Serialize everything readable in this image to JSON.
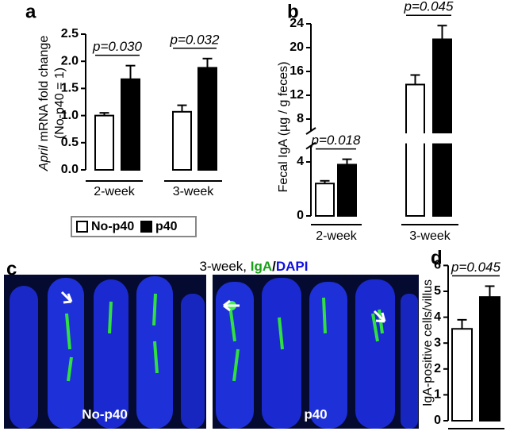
{
  "chart_data": [
    {
      "type": "bar",
      "panel": "a",
      "ylabel": [
        "April",
        "mRNA fold change",
        "(No-p40 = 1)"
      ],
      "categories": [
        "2-week",
        "3-week"
      ],
      "series": [
        {
          "name": "No-p40",
          "color": "#ffffff",
          "values": [
            1.0,
            1.07
          ],
          "errors": [
            0.05,
            0.12
          ]
        },
        {
          "name": "p40",
          "color": "#000000",
          "values": [
            1.67,
            1.88
          ],
          "errors": [
            0.25,
            0.17
          ]
        }
      ],
      "annotations": [
        "p=0.030",
        "p=0.032"
      ],
      "ylim": [
        0,
        2.5
      ],
      "yticks": [
        {
          "value": 0,
          "label": "0.0"
        },
        0.5,
        {
          "value": 1,
          "label": "1.0"
        },
        1.5,
        {
          "value": 2,
          "label": "2.0"
        },
        2.5
      ]
    },
    {
      "type": "bar",
      "panel": "b",
      "ylabel": "Fecal IgA (µg / g feces)",
      "categories": [
        "2-week",
        "3-week"
      ],
      "series": [
        {
          "name": "No-p40",
          "color": "#ffffff",
          "values": [
            2.4,
            13.8
          ],
          "errors": [
            0.2,
            1.6
          ]
        },
        {
          "name": "p40",
          "color": "#000000",
          "values": [
            3.8,
            21.4
          ],
          "errors": [
            0.4,
            2.3
          ]
        }
      ],
      "annotations": [
        "p=0.018",
        "p=0.045"
      ],
      "ylim_segments": [
        [
          0,
          5.2
        ],
        [
          6,
          24
        ]
      ],
      "yticks": [
        0,
        4,
        8,
        12,
        16,
        20,
        24
      ]
    },
    {
      "type": "image",
      "panel": "c",
      "title_parts": [
        {
          "text": "3-week, ",
          "color": "#000000"
        },
        {
          "text": "IgA",
          "color": "#1aa01a"
        },
        {
          "text": "/",
          "color": "#000000"
        },
        {
          "text": "DAPI",
          "color": "#1010e0"
        }
      ],
      "labels": [
        "No-p40",
        "p40"
      ]
    },
    {
      "type": "bar",
      "panel": "d",
      "ylabel": "IgA-positive cells/villus",
      "categories": [
        null
      ],
      "series": [
        {
          "name": "No-p40",
          "color": "#ffffff",
          "values": [
            3.55
          ],
          "errors": [
            0.35
          ]
        },
        {
          "name": "p40",
          "color": "#000000",
          "values": [
            4.78
          ],
          "errors": [
            0.42
          ]
        }
      ],
      "annotations": [
        "p=0.045"
      ],
      "ylim": [
        0,
        6
      ],
      "yticks": [
        0,
        1,
        2,
        3,
        4,
        5,
        6
      ]
    }
  ]
}
